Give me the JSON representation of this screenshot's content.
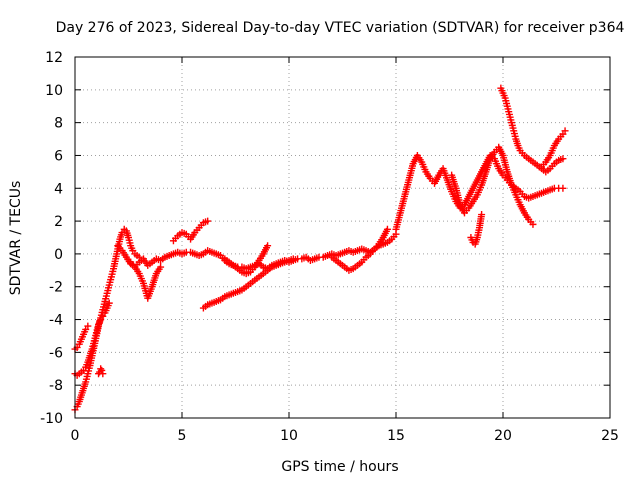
{
  "chart_data": {
    "type": "scatter",
    "title": "Day 276 of 2023, Sidereal Day-to-day VTEC variation (SDTVAR) for receiver p364",
    "xlabel": "GPS time / hours",
    "ylabel": "SDTVAR / TECUs",
    "xlim": [
      0,
      25
    ],
    "ylim": [
      -10,
      12
    ],
    "xticks": [
      0,
      5,
      10,
      15,
      20,
      25
    ],
    "yticks": [
      -10,
      -8,
      -6,
      -4,
      -2,
      0,
      2,
      4,
      6,
      8,
      10,
      12
    ],
    "grid": true,
    "marker": "+",
    "color": "#ff0000",
    "series": [
      {
        "x": [
          0.0,
          0.1,
          0.2,
          0.3,
          0.4,
          0.5,
          0.6,
          0.7,
          0.8,
          0.9,
          1.0,
          1.1,
          1.2,
          1.3,
          1.4,
          1.5,
          1.6,
          1.7,
          1.8,
          1.9,
          2.0,
          2.1,
          2.2,
          2.3,
          2.4,
          2.5,
          2.6,
          2.7,
          2.8,
          2.9,
          3.0
        ],
        "y": [
          -9.5,
          -9.3,
          -9.0,
          -8.6,
          -8.2,
          -7.8,
          -7.3,
          -6.8,
          -6.2,
          -5.6,
          -5.0,
          -4.4,
          -3.9,
          -3.4,
          -2.9,
          -2.4,
          -1.9,
          -1.4,
          -0.9,
          -0.3,
          0.3,
          0.9,
          1.3,
          1.5,
          1.4,
          1.0,
          0.5,
          0.2,
          0.0,
          -0.1,
          -0.2
        ]
      },
      {
        "x": [
          0.0,
          0.1,
          0.2,
          0.3,
          0.4,
          0.5,
          0.6,
          0.7,
          0.8,
          0.9,
          1.0,
          1.1,
          1.2,
          1.3,
          1.4,
          1.5,
          1.6
        ],
        "y": [
          -7.3,
          -7.4,
          -7.3,
          -7.2,
          -7.1,
          -6.9,
          -6.6,
          -6.2,
          -5.8,
          -5.3,
          -4.8,
          -4.3,
          -4.0,
          -3.8,
          -3.6,
          -3.3,
          -3.0
        ]
      },
      {
        "x": [
          0.0,
          0.1,
          0.2,
          0.3,
          0.4,
          0.5,
          0.6
        ],
        "y": [
          -5.8,
          -5.7,
          -5.5,
          -5.2,
          -4.9,
          -4.6,
          -4.4
        ]
      },
      {
        "x": [
          1.1,
          1.15,
          1.2,
          1.25,
          1.3
        ],
        "y": [
          -7.3,
          -7.2,
          -7.0,
          -7.1,
          -7.3
        ]
      },
      {
        "x": [
          2.0,
          2.2,
          2.4,
          2.6,
          2.8,
          3.0,
          3.2,
          3.4,
          3.6,
          3.8,
          4.0,
          4.2,
          4.4,
          4.6,
          4.8,
          5.0,
          5.2,
          5.4,
          5.6,
          5.8,
          6.0,
          6.2,
          6.4,
          6.6,
          6.8,
          7.0,
          7.2,
          7.4,
          7.6,
          7.8,
          8.0,
          8.2,
          8.4,
          8.6,
          8.8,
          9.0,
          9.2,
          9.4,
          9.6,
          9.8,
          10.0,
          10.2,
          10.4,
          10.6,
          10.8,
          11.0,
          11.2,
          11.4,
          11.6,
          11.8,
          12.0,
          12.2,
          12.4,
          12.6,
          12.8,
          13.0,
          13.2,
          13.4,
          13.6,
          13.8,
          14.0,
          14.2,
          14.4,
          14.6,
          14.8,
          15.0
        ],
        "y": [
          0.5,
          0.2,
          -0.2,
          -0.6,
          -0.8,
          -0.5,
          -0.3,
          -0.7,
          -0.5,
          -0.3,
          -0.4,
          -0.2,
          -0.1,
          0.0,
          0.1,
          0.0,
          0.1,
          0.1,
          0.0,
          -0.1,
          0.0,
          0.2,
          0.1,
          0.0,
          -0.1,
          -0.4,
          -0.6,
          -0.7,
          -0.8,
          -0.8,
          -0.9,
          -0.8,
          -0.7,
          -0.6,
          -0.8,
          -0.9,
          -0.7,
          -0.6,
          -0.5,
          -0.4,
          -0.5,
          -0.4,
          -0.3,
          -0.3,
          -0.2,
          -0.4,
          -0.3,
          -0.2,
          -0.2,
          -0.1,
          0.0,
          -0.1,
          0.0,
          0.1,
          0.2,
          0.1,
          0.2,
          0.3,
          0.2,
          0.1,
          0.3,
          0.5,
          0.6,
          0.7,
          0.9,
          1.2
        ]
      },
      {
        "x": [
          2.6,
          2.8,
          3.0,
          3.2,
          3.4,
          3.6,
          3.8,
          4.0
        ],
        "y": [
          -0.5,
          -0.8,
          -1.2,
          -1.8,
          -2.7,
          -2.0,
          -1.2,
          -0.8
        ]
      },
      {
        "x": [
          4.6,
          4.8,
          5.0,
          5.2,
          5.4,
          5.6,
          5.8,
          6.0,
          6.2
        ],
        "y": [
          0.8,
          1.1,
          1.3,
          1.2,
          0.9,
          1.3,
          1.6,
          1.9,
          2.0
        ]
      },
      {
        "x": [
          7.0,
          7.2,
          7.4,
          7.6,
          7.8,
          8.0,
          8.2,
          8.4,
          8.6,
          8.8,
          9.0
        ],
        "y": [
          -0.3,
          -0.5,
          -0.7,
          -0.9,
          -1.1,
          -1.2,
          -1.1,
          -0.8,
          -0.4,
          0.0,
          0.5
        ]
      },
      {
        "x": [
          6.0,
          6.2,
          6.4,
          6.6,
          6.8,
          7.0,
          7.2,
          7.4,
          7.6,
          7.8,
          8.0,
          8.2,
          8.4,
          8.6,
          8.8,
          9.0,
          9.2,
          9.4,
          9.6,
          9.8,
          10.0,
          10.2
        ],
        "y": [
          -3.3,
          -3.1,
          -3.0,
          -2.9,
          -2.8,
          -2.6,
          -2.5,
          -2.4,
          -2.3,
          -2.2,
          -2.0,
          -1.8,
          -1.6,
          -1.4,
          -1.2,
          -1.0,
          -0.8,
          -0.7,
          -0.6,
          -0.5,
          -0.4,
          -0.3
        ]
      },
      {
        "x": [
          12.0,
          12.2,
          12.4,
          12.6,
          12.8,
          13.0,
          13.2,
          13.4,
          13.6,
          13.8,
          14.0,
          14.2,
          14.4,
          14.6
        ],
        "y": [
          -0.2,
          -0.4,
          -0.6,
          -0.8,
          -1.0,
          -0.9,
          -0.7,
          -0.5,
          -0.2,
          0.0,
          0.3,
          0.6,
          1.0,
          1.5
        ]
      },
      {
        "x": [
          15.0,
          15.2,
          15.4,
          15.6,
          15.8,
          16.0,
          16.2,
          16.4,
          16.6,
          16.8,
          17.0,
          17.2,
          17.4,
          17.6,
          17.8,
          18.0,
          18.2,
          18.4,
          18.6,
          18.8,
          19.0,
          19.2,
          19.4,
          19.6,
          19.8,
          20.0,
          20.2,
          20.4,
          20.6,
          20.8,
          21.0,
          21.2,
          21.4,
          21.6,
          21.8,
          22.0,
          22.2,
          22.4,
          22.6,
          22.8
        ],
        "y": [
          1.5,
          2.5,
          3.5,
          4.5,
          5.5,
          6.0,
          5.6,
          5.0,
          4.6,
          4.3,
          4.8,
          5.2,
          4.5,
          3.8,
          3.2,
          2.8,
          3.0,
          3.5,
          4.0,
          4.5,
          5.0,
          5.5,
          6.0,
          5.8,
          5.2,
          4.8,
          4.5,
          4.2,
          4.0,
          3.8,
          3.5,
          3.4,
          3.5,
          3.6,
          3.7,
          3.8,
          3.9,
          4.0,
          4.0,
          4.0
        ]
      },
      {
        "x": [
          17.6,
          17.8,
          18.0,
          18.2,
          18.4,
          18.6,
          18.8,
          19.0,
          19.2,
          19.4,
          19.6,
          19.8,
          20.0,
          20.2,
          20.4,
          20.6,
          20.8,
          21.0,
          21.2,
          21.4
        ],
        "y": [
          4.8,
          4.0,
          3.0,
          2.5,
          2.8,
          3.2,
          3.6,
          4.2,
          5.0,
          5.8,
          6.2,
          6.5,
          6.0,
          5.0,
          4.2,
          3.6,
          3.0,
          2.5,
          2.1,
          1.8
        ]
      },
      {
        "x": [
          18.5,
          18.6,
          18.7,
          18.8,
          18.9,
          19.0
        ],
        "y": [
          1.0,
          0.7,
          0.6,
          1.0,
          1.6,
          2.4
        ]
      },
      {
        "x": [
          19.9,
          20.0,
          20.1,
          20.2,
          20.3,
          20.4,
          20.5,
          20.6,
          20.7,
          20.8,
          21.0,
          21.2,
          21.4,
          21.6,
          21.8,
          22.0,
          22.2,
          22.4,
          22.6,
          22.8
        ],
        "y": [
          10.1,
          9.8,
          9.5,
          9.0,
          8.5,
          8.0,
          7.5,
          7.0,
          6.6,
          6.3,
          6.0,
          5.8,
          5.6,
          5.4,
          5.2,
          5.0,
          5.2,
          5.5,
          5.7,
          5.8
        ]
      },
      {
        "x": [
          21.8,
          22.0,
          22.2,
          22.4,
          22.6,
          22.8,
          22.9
        ],
        "y": [
          5.3,
          5.6,
          6.0,
          6.6,
          7.0,
          7.3,
          7.5
        ]
      }
    ]
  }
}
